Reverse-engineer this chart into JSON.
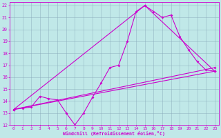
{
  "xlabel": "Windchill (Refroidissement éolien,°C)",
  "xlim": [
    -0.5,
    23.5
  ],
  "ylim": [
    12,
    22.3
  ],
  "xticks": [
    0,
    1,
    2,
    3,
    4,
    5,
    6,
    7,
    8,
    9,
    10,
    11,
    12,
    13,
    14,
    15,
    16,
    17,
    18,
    19,
    20,
    21,
    22,
    23
  ],
  "yticks": [
    12,
    13,
    14,
    15,
    16,
    17,
    18,
    19,
    20,
    21,
    22
  ],
  "bg_color": "#c0e8e8",
  "line_color": "#cc00cc",
  "grid_color": "#88aabb",
  "curve_x": [
    0,
    1,
    2,
    3,
    4,
    5,
    6,
    7,
    8,
    9,
    10,
    11,
    12,
    13,
    14,
    15,
    16,
    17,
    18,
    19,
    20,
    21,
    22,
    23
  ],
  "curve_y": [
    13.3,
    13.4,
    13.5,
    14.4,
    14.2,
    14.1,
    13.0,
    12.0,
    13.0,
    14.3,
    15.5,
    16.8,
    17.0,
    19.0,
    21.5,
    22.0,
    21.5,
    21.0,
    21.2,
    19.4,
    18.3,
    17.3,
    16.6,
    16.5
  ],
  "line1_x": [
    0,
    23
  ],
  "line1_y": [
    13.3,
    16.5
  ],
  "line2_x": [
    0,
    23
  ],
  "line2_y": [
    13.3,
    16.8
  ],
  "line3_x": [
    0,
    15,
    23
  ],
  "line3_y": [
    13.3,
    22.0,
    16.5
  ]
}
